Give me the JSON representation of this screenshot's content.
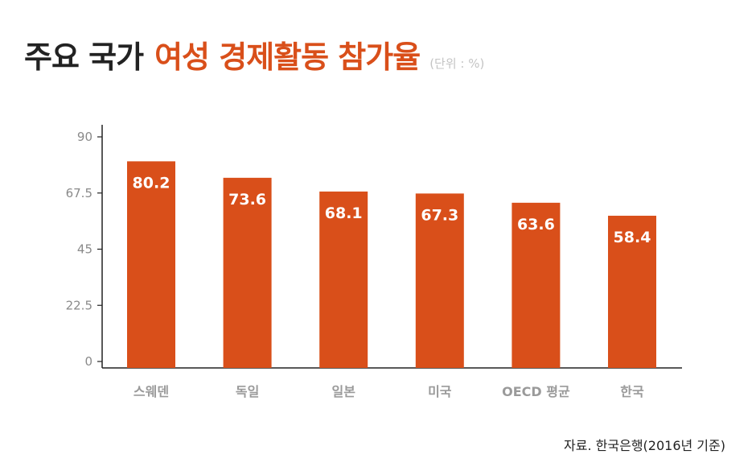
{
  "title": {
    "part1": "주요 국가",
    "part2": "여성 경제활동 참가율",
    "unit": "(단위 : %)"
  },
  "colors": {
    "bar": "#d94f1a",
    "accent": "#d94f1a",
    "axis": "#222222",
    "tick_label": "#8a8a8a",
    "category_label": "#9a9a9a",
    "value_label": "#ffffff"
  },
  "chart_data": {
    "type": "bar",
    "categories": [
      "스웨덴",
      "독일",
      "일본",
      "미국",
      "OECD 평균",
      "한국"
    ],
    "values": [
      80.2,
      73.6,
      68.1,
      67.3,
      63.6,
      58.4
    ],
    "value_labels": [
      "80.2",
      "73.6",
      "68.1",
      "67.3",
      "63.6",
      "58.4"
    ],
    "yticks": [
      0,
      22.5,
      45,
      67.5,
      90
    ],
    "ytick_labels": [
      "0",
      "22.5",
      "45",
      "67.5",
      "90"
    ],
    "ylim": [
      0,
      90
    ],
    "grid": false,
    "title": "주요 국가 여성 경제활동 참가율",
    "xlabel": "",
    "ylabel": ""
  },
  "source": "자료. 한국은행(2016년 기준)"
}
